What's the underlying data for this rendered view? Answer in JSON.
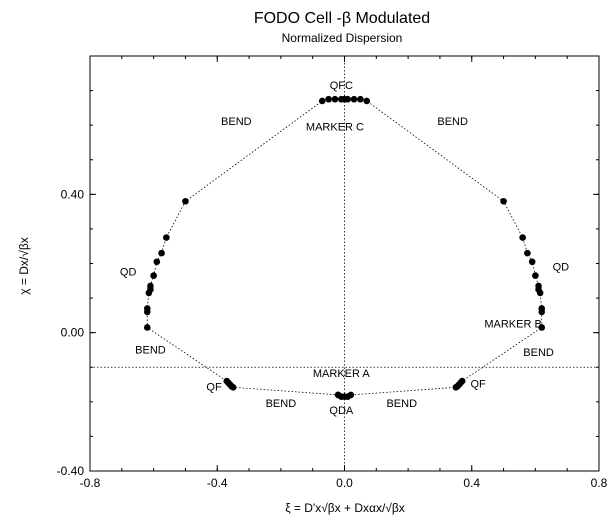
{
  "chart_data": {
    "type": "scatter",
    "title": "FODO Cell -β Modulated",
    "subtitle": "Normalized Dispersion",
    "xlabel": "ξ = D'x√βx + Dxαx/√βx",
    "ylabel": "χ = Dx/√βx",
    "xlim": [
      -0.8,
      0.8
    ],
    "ylim": [
      -0.4,
      0.8
    ],
    "x_ticks": [
      "-0.8",
      "-0.4",
      "0.0",
      "0.4",
      "0.8"
    ],
    "y_ticks": [
      "-0.40",
      "0.00",
      "0.40"
    ],
    "series": [
      {
        "line": "dotted",
        "points": [
          [
            -0.02,
            -0.18
          ],
          [
            -0.01,
            -0.185
          ],
          [
            0.0,
            -0.185
          ],
          [
            0.01,
            -0.185
          ],
          [
            0.02,
            -0.18
          ],
          [
            0.35,
            -0.158
          ],
          [
            0.355,
            -0.155
          ],
          [
            0.36,
            -0.15
          ],
          [
            0.365,
            -0.145
          ],
          [
            0.37,
            -0.14
          ],
          [
            0.62,
            0.015
          ],
          [
            0.62,
            0.06
          ],
          [
            0.62,
            0.07
          ],
          [
            0.615,
            0.115
          ],
          [
            0.61,
            0.125
          ],
          [
            0.61,
            0.135
          ],
          [
            0.6,
            0.165
          ],
          [
            0.59,
            0.205
          ],
          [
            0.575,
            0.23
          ],
          [
            0.56,
            0.275
          ],
          [
            0.5,
            0.38
          ],
          [
            0.07,
            0.67
          ],
          [
            0.05,
            0.675
          ],
          [
            0.03,
            0.675
          ],
          [
            0.01,
            0.675
          ],
          [
            0.0,
            0.675
          ],
          [
            -0.01,
            0.675
          ],
          [
            -0.03,
            0.675
          ],
          [
            -0.05,
            0.675
          ],
          [
            -0.07,
            0.67
          ],
          [
            -0.5,
            0.38
          ],
          [
            -0.56,
            0.275
          ],
          [
            -0.575,
            0.23
          ],
          [
            -0.59,
            0.205
          ],
          [
            -0.6,
            0.165
          ],
          [
            -0.61,
            0.135
          ],
          [
            -0.61,
            0.125
          ],
          [
            -0.615,
            0.115
          ],
          [
            -0.62,
            0.07
          ],
          [
            -0.62,
            0.06
          ],
          [
            -0.62,
            0.015
          ],
          [
            -0.37,
            -0.14
          ],
          [
            -0.365,
            -0.145
          ],
          [
            -0.36,
            -0.15
          ],
          [
            -0.355,
            -0.155
          ],
          [
            -0.35,
            -0.158
          ],
          [
            -0.02,
            -0.18
          ]
        ]
      }
    ],
    "reference_lines": {
      "vertical_x": 0.0,
      "horizontal_y": -0.1,
      "style": "dotted"
    },
    "annotations": [
      {
        "text": "QFC",
        "x": -0.01,
        "y": 0.705
      },
      {
        "text": "MARKER C",
        "x": -0.03,
        "y": 0.585
      },
      {
        "text": "BEND",
        "x": -0.34,
        "y": 0.6
      },
      {
        "text": "BEND",
        "x": 0.34,
        "y": 0.6
      },
      {
        "text": "QD",
        "x": -0.68,
        "y": 0.165
      },
      {
        "text": "QD",
        "x": 0.68,
        "y": 0.18
      },
      {
        "text": "MARKER B",
        "x": 0.53,
        "y": 0.015
      },
      {
        "text": "BEND",
        "x": -0.61,
        "y": -0.06
      },
      {
        "text": "BEND",
        "x": 0.61,
        "y": -0.068
      },
      {
        "text": "MARKER A",
        "x": -0.01,
        "y": -0.128
      },
      {
        "text": "QF",
        "x": -0.41,
        "y": -0.167
      },
      {
        "text": "QF",
        "x": 0.42,
        "y": -0.158
      },
      {
        "text": "BEND",
        "x": -0.2,
        "y": -0.215
      },
      {
        "text": "BEND",
        "x": 0.18,
        "y": -0.215
      },
      {
        "text": "QDA",
        "x": -0.01,
        "y": -0.235
      }
    ]
  }
}
